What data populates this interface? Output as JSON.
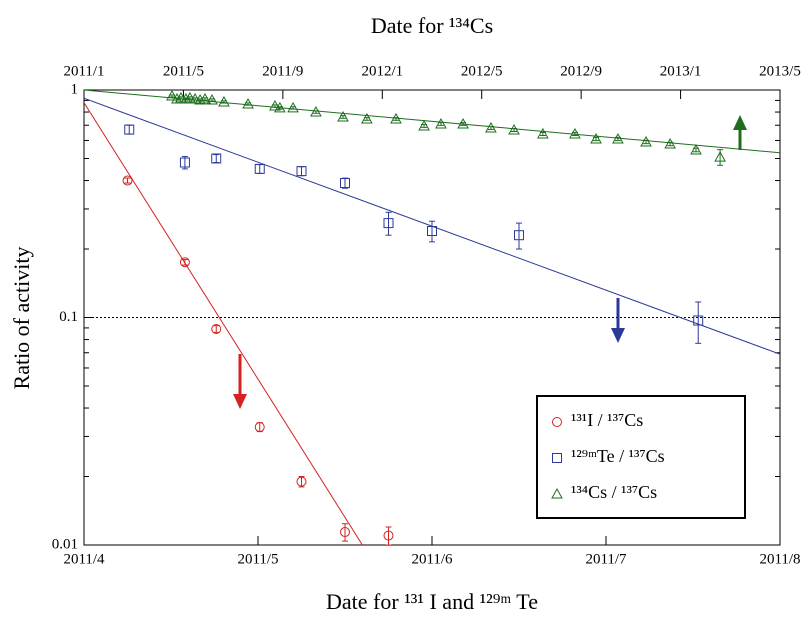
{
  "chart_data": {
    "type": "scatter",
    "title": "Date for ¹³⁴Cs",
    "xlabel": "Date for ¹³¹ I and ¹²⁹ᵐ Te",
    "ylabel": "Ratio of activity",
    "xlim": [
      4,
      8
    ],
    "xticks": [
      {
        "value": 4,
        "label": "2011/4"
      },
      {
        "value": 5,
        "label": "2011/5"
      },
      {
        "value": 6,
        "label": "2011/6"
      },
      {
        "value": 7,
        "label": "2011/7"
      },
      {
        "value": 8,
        "label": "2011/8"
      }
    ],
    "x2lim": [
      1,
      29
    ],
    "x2ticks": [
      {
        "value": 1,
        "label": "2011/1"
      },
      {
        "value": 5,
        "label": "2011/5"
      },
      {
        "value": 9,
        "label": "2011/9"
      },
      {
        "value": 13,
        "label": "2012/1"
      },
      {
        "value": 17,
        "label": "2012/5"
      },
      {
        "value": 21,
        "label": "2012/9"
      },
      {
        "value": 25,
        "label": "2013/1"
      },
      {
        "value": 29,
        "label": "2013/5"
      }
    ],
    "ylim": [
      0.01,
      1
    ],
    "yticks": [
      0.01,
      0.1,
      1
    ],
    "log_y": true,
    "hline": 0.1,
    "legend": "lower right",
    "series": [
      {
        "name": "¹³¹I / ¹³⁷Cs",
        "color": "#d42222",
        "marker": "circle",
        "axis": "x",
        "x": [
          4.25,
          4.58,
          4.76,
          5.01,
          5.25,
          5.5,
          5.75
        ],
        "values": [
          0.4,
          0.175,
          0.089,
          0.033,
          0.019,
          0.0114,
          0.011
        ],
        "errors": [
          0.01,
          0.005,
          0.003,
          0.0015,
          0.001,
          0.001,
          0.001
        ],
        "fit": {
          "x": [
            4,
            5.6
          ],
          "values": [
            0.88,
            0.01
          ]
        }
      },
      {
        "name": "¹²⁹ᵐTe / ¹³⁷Cs",
        "color": "#2b3a98",
        "marker": "square",
        "axis": "x",
        "x": [
          4.26,
          4.58,
          4.76,
          5.01,
          5.25,
          5.5,
          5.75,
          6.0,
          6.5,
          7.53
        ],
        "values": [
          0.67,
          0.48,
          0.5,
          0.45,
          0.44,
          0.39,
          0.26,
          0.24,
          0.23,
          0.097
        ],
        "errors": [
          0.03,
          0.03,
          0.02,
          0.02,
          0.02,
          0.02,
          0.03,
          0.025,
          0.03,
          0.02
        ],
        "fit": {
          "x": [
            4,
            8
          ],
          "values": [
            0.92,
            0.069
          ]
        }
      },
      {
        "name": "¹³⁴Cs / ¹³⁷Cs",
        "color": "#1e6e1e",
        "marker": "triangle",
        "axis": "x2",
        "x": [
          4.54,
          4.74,
          4.9,
          5.1,
          5.26,
          5.47,
          5.67,
          5.87,
          6.15,
          6.63,
          7.6,
          8.68,
          8.88,
          9.41,
          10.33,
          11.42,
          12.38,
          13.55,
          14.68,
          15.36,
          16.25,
          17.37,
          18.3,
          19.46,
          20.75,
          21.6,
          22.48,
          23.61,
          24.58,
          25.62,
          26.59
        ],
        "values": [
          0.941,
          0.913,
          0.923,
          0.913,
          0.923,
          0.913,
          0.904,
          0.913,
          0.904,
          0.886,
          0.868,
          0.85,
          0.834,
          0.834,
          0.8,
          0.761,
          0.746,
          0.746,
          0.695,
          0.709,
          0.709,
          0.681,
          0.667,
          0.641,
          0.641,
          0.609,
          0.609,
          0.591,
          0.579,
          0.545,
          0.507
        ],
        "errors": [
          0.01,
          0.01,
          0.01,
          0.01,
          0.01,
          0.01,
          0.01,
          0.01,
          0.01,
          0.01,
          0.01,
          0.01,
          0.01,
          0.01,
          0.01,
          0.01,
          0.01,
          0.01,
          0.01,
          0.01,
          0.01,
          0.01,
          0.01,
          0.01,
          0.01,
          0.01,
          0.01,
          0.01,
          0.01,
          0.01,
          0.04
        ],
        "fit": {
          "x": [
            1,
            29
          ],
          "values": [
            1.0,
            0.53
          ]
        }
      }
    ]
  }
}
